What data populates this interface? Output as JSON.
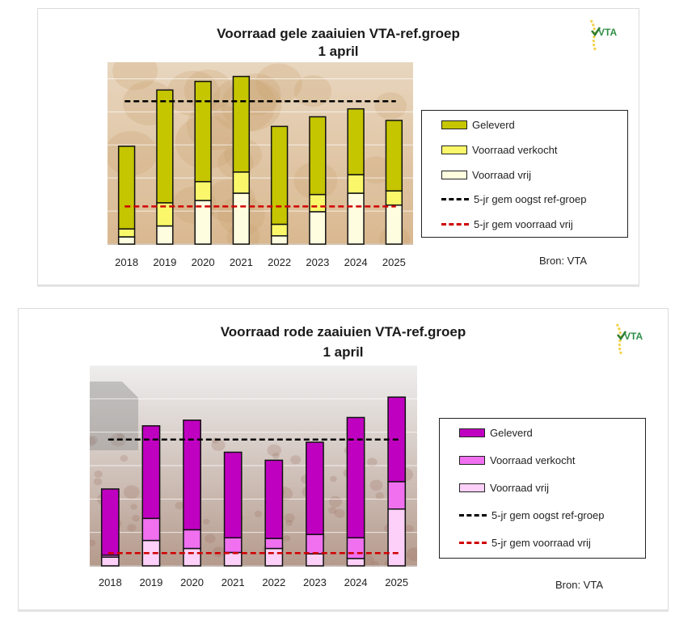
{
  "chart_data": [
    {
      "type": "bar",
      "stacked": true,
      "title": "Voorraad gele zaaiuien VTA-ref.groep",
      "subtitle": "1 april",
      "xlabel": "",
      "ylabel": "",
      "y_axis_labels_visible": false,
      "ylim": [
        0,
        5.5
      ],
      "grid": true,
      "categories": [
        "2018",
        "2019",
        "2020",
        "2021",
        "2022",
        "2023",
        "2024",
        "2025"
      ],
      "series": [
        {
          "name": "Voorraad vrij",
          "color": "#FEFDE0",
          "values": [
            0.22,
            0.55,
            1.32,
            1.54,
            0.25,
            0.98,
            1.54,
            1.18
          ]
        },
        {
          "name": "Voorraad verkocht",
          "color": "#FAF86A",
          "values": [
            0.24,
            0.7,
            0.57,
            0.64,
            0.35,
            0.52,
            0.56,
            0.43
          ]
        },
        {
          "name": "Geleverd",
          "color": "#C5C500",
          "values": [
            2.5,
            3.41,
            3.03,
            2.89,
            2.96,
            2.35,
            1.99,
            2.13
          ]
        }
      ],
      "reference_lines": [
        {
          "name": "5-jr gem oogst ref-groep",
          "value": 4.32,
          "color": "#000000"
        },
        {
          "name": "5-jr gem voorraad vrij",
          "value": 1.14,
          "color": "#D00000"
        }
      ],
      "legend_position": "right",
      "legend": [
        "Geleverd",
        "Voorraad verkocht",
        "Voorraad vrij",
        "5-jr gem oogst ref-groep",
        "5-jr gem voorraad vrij"
      ],
      "source": "Bron: VTA",
      "logo_text": "VTA"
    },
    {
      "type": "bar",
      "stacked": true,
      "title": "Voorraad rode zaaiuien VTA-ref.groep",
      "subtitle": "1 april",
      "xlabel": "",
      "ylabel": "",
      "y_axis_labels_visible": false,
      "ylim": [
        0,
        6
      ],
      "grid": true,
      "categories": [
        "2018",
        "2019",
        "2020",
        "2021",
        "2022",
        "2023",
        "2024",
        "2025"
      ],
      "series": [
        {
          "name": "Voorraad vrij",
          "color": "#FCD0F8",
          "values": [
            0.26,
            0.76,
            0.52,
            0.4,
            0.52,
            0.36,
            0.22,
            1.7
          ]
        },
        {
          "name": "Voorraad verkocht",
          "color": "#F070F0",
          "values": [
            0.06,
            0.66,
            0.56,
            0.44,
            0.3,
            0.58,
            0.62,
            0.82
          ]
        },
        {
          "name": "Geleverd",
          "color": "#C000C0",
          "values": [
            1.98,
            2.77,
            3.28,
            2.56,
            2.34,
            2.76,
            3.6,
            2.53
          ]
        }
      ],
      "reference_lines": [
        {
          "name": "5-jr gem oogst ref-groep",
          "value": 3.78,
          "color": "#000000"
        },
        {
          "name": "5-jr gem voorraad vrij",
          "value": 0.38,
          "color": "#D00000"
        }
      ],
      "legend_position": "right",
      "legend": [
        "Geleverd",
        "Voorraad verkocht",
        "Voorraad vrij",
        "5-jr gem oogst ref-groep",
        "5-jr gem voorraad vrij"
      ],
      "source": "Bron: VTA",
      "logo_text": "VTA"
    }
  ]
}
